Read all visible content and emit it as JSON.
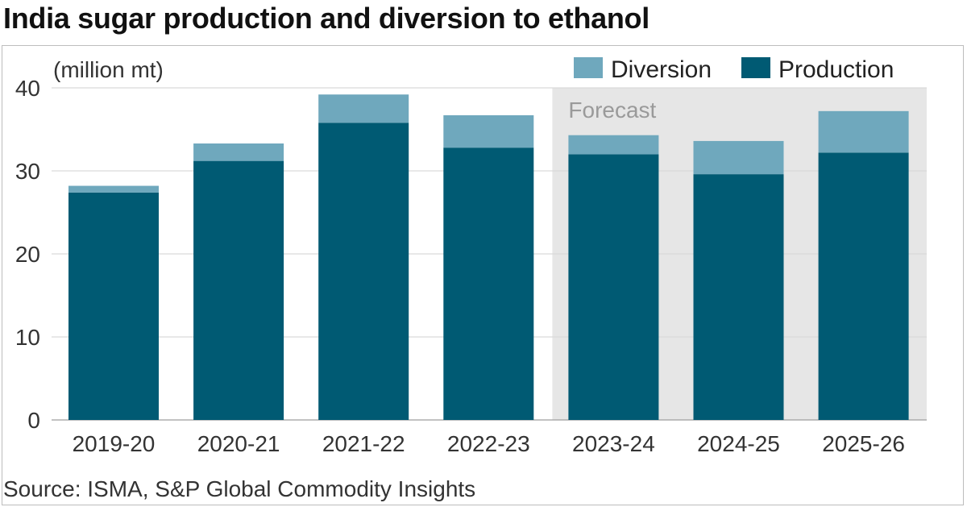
{
  "chart_data": {
    "type": "bar",
    "stacked": true,
    "title": "India sugar production and diversion to ethanol",
    "ylabel": "(million mt)",
    "source": "Source: ISMA, S&P Global Commodity Insights",
    "categories": [
      "2019-20",
      "2020-21",
      "2021-22",
      "2022-23",
      "2023-24",
      "2024-25",
      "2025-26"
    ],
    "series": [
      {
        "name": "Production",
        "color": "#005a73",
        "values": [
          27.4,
          31.2,
          35.8,
          32.8,
          32.0,
          29.6,
          32.2
        ]
      },
      {
        "name": "Diversion",
        "color": "#6fa8bd",
        "values": [
          0.8,
          2.1,
          3.4,
          3.9,
          2.3,
          4.0,
          5.0
        ]
      }
    ],
    "ylim": [
      0,
      40
    ],
    "yticks": [
      0,
      10,
      20,
      30,
      40
    ],
    "grid": true,
    "legend_position": "top-right",
    "forecast": {
      "label": "Forecast",
      "from_category": "2023-24",
      "color": "#e6e6e6"
    }
  }
}
